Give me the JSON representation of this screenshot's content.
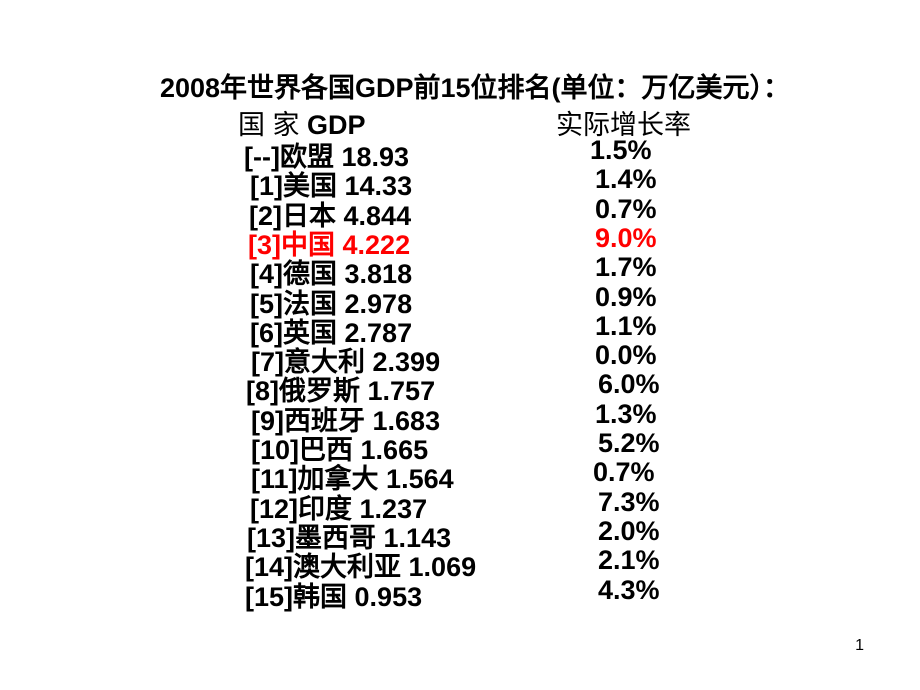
{
  "title": "2008年世界各国GDP前15位排名(单位：万亿美元）：",
  "header": {
    "country_label": "国 家 ",
    "gdp_label": "GDP",
    "growth_label": "实际增长率"
  },
  "rows": [
    {
      "rank": "[--]",
      "country": "欧盟",
      "gdp": "18.93",
      "growth": "1.5%"
    },
    {
      "rank": "[1]",
      "country": "美国",
      "gdp": "14.33",
      "growth": "1.4%"
    },
    {
      "rank": "[2]",
      "country": "日本",
      "gdp": "4.844",
      "growth": "0.7%"
    },
    {
      "rank": "[3]",
      "country": "中国",
      "gdp": "4.222",
      "growth": "9.0%",
      "highlight": "#ff0000"
    },
    {
      "rank": "[4]",
      "country": "德国",
      "gdp": "3.818",
      "growth": "1.7%"
    },
    {
      "rank": "[5]",
      "country": "法国",
      "gdp": "2.978",
      "growth": "0.9%"
    },
    {
      "rank": "[6]",
      "country": "英国",
      "gdp": "2.787",
      "growth": "1.1%"
    },
    {
      "rank": "[7]",
      "country": "意大利",
      "gdp": "2.399",
      "growth": "0.0%"
    },
    {
      "rank": "[8]",
      "country": "俄罗斯",
      "gdp": "1.757",
      "growth": "6.0%"
    },
    {
      "rank": "[9]",
      "country": "西班牙",
      "gdp": "1.683",
      "growth": "1.3%"
    },
    {
      "rank": "[10]",
      "country": "巴西",
      "gdp": "1.665",
      "growth": "5.2%"
    },
    {
      "rank": "[11]",
      "country": "加拿大",
      "gdp": "1.564",
      "growth": "0.7%"
    },
    {
      "rank": "[12]",
      "country": "印度",
      "gdp": "1.237",
      "growth": "7.3%"
    },
    {
      "rank": "[13]",
      "country": "墨西哥",
      "gdp": "1.143",
      "growth": "2.0%"
    },
    {
      "rank": "[14]",
      "country": "澳大利亚",
      "gdp": "1.069",
      "growth": "2.1%"
    },
    {
      "rank": "[15]",
      "country": "韩国",
      "gdp": "0.953",
      "growth": "4.3%"
    }
  ],
  "page_number": "1"
}
